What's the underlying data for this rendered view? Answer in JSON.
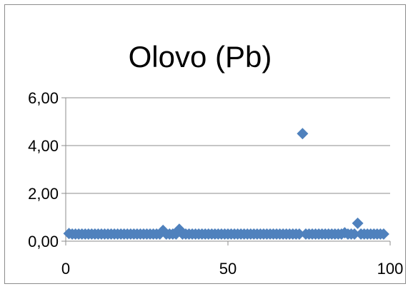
{
  "chart_data": {
    "type": "scatter",
    "title": "Olovo (Pb)",
    "xlabel": "",
    "ylabel": "",
    "xlim": [
      0,
      100
    ],
    "ylim": [
      0,
      6
    ],
    "x_ticks": [
      0,
      50,
      100
    ],
    "y_ticks": [
      0,
      2,
      4,
      6
    ],
    "x_tick_labels": [
      "0",
      "50",
      "100"
    ],
    "y_tick_labels": [
      "0,00",
      "2,00",
      "4,00",
      "6,00"
    ],
    "grid": "horizontal",
    "legend": "none",
    "marker": "diamond",
    "color": "#4f81bd",
    "series": [
      {
        "x": [
          1,
          2,
          3,
          4,
          5,
          6,
          7,
          8,
          9,
          10,
          11,
          12,
          13,
          14,
          15,
          16,
          17,
          18,
          19,
          20,
          21,
          22,
          23,
          24,
          25,
          26,
          27,
          28,
          29,
          30,
          31,
          32,
          33,
          34,
          35,
          36,
          37,
          38,
          39,
          40,
          41,
          42,
          43,
          44,
          45,
          46,
          47,
          48,
          49,
          50,
          51,
          52,
          53,
          54,
          55,
          56,
          57,
          58,
          59,
          60,
          61,
          62,
          63,
          64,
          65,
          66,
          67,
          68,
          69,
          70,
          71,
          72,
          73,
          74,
          75,
          76,
          77,
          78,
          79,
          80,
          81,
          82,
          83,
          84,
          85,
          86,
          87,
          88,
          89,
          90,
          91,
          92,
          93,
          94,
          95,
          96,
          97,
          98
        ],
        "y": [
          0.32,
          0.3,
          0.3,
          0.3,
          0.3,
          0.3,
          0.3,
          0.3,
          0.3,
          0.3,
          0.3,
          0.3,
          0.3,
          0.3,
          0.3,
          0.3,
          0.3,
          0.3,
          0.3,
          0.3,
          0.3,
          0.3,
          0.3,
          0.3,
          0.3,
          0.3,
          0.3,
          0.3,
          0.3,
          0.45,
          0.3,
          0.3,
          0.3,
          0.3,
          0.5,
          0.3,
          0.3,
          0.3,
          0.3,
          0.3,
          0.3,
          0.3,
          0.3,
          0.3,
          0.3,
          0.3,
          0.3,
          0.3,
          0.3,
          0.3,
          0.3,
          0.3,
          0.3,
          0.3,
          0.3,
          0.3,
          0.3,
          0.3,
          0.3,
          0.3,
          0.3,
          0.3,
          0.3,
          0.3,
          0.3,
          0.3,
          0.3,
          0.3,
          0.3,
          0.3,
          0.3,
          0.3,
          4.5,
          0.3,
          0.3,
          0.3,
          0.3,
          0.3,
          0.3,
          0.3,
          0.3,
          0.3,
          0.3,
          0.3,
          0.3,
          0.35,
          0.3,
          0.3,
          0.3,
          0.75,
          0.3,
          0.3,
          0.3,
          0.3,
          0.3,
          0.3,
          0.3,
          0.3
        ]
      }
    ]
  }
}
